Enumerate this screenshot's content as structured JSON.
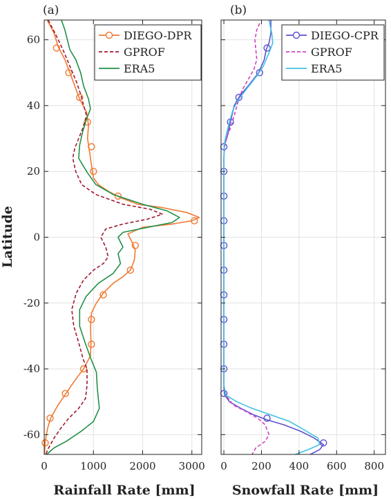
{
  "chart_data": [
    {
      "type": "line",
      "panel_label": "(a)",
      "xlabel": "Rainfall Rate [mm]",
      "ylabel": "Latitude",
      "xlim": [
        0,
        3200
      ],
      "ylim": [
        -66,
        66
      ],
      "xticks": [
        0,
        1000,
        2000,
        3000
      ],
      "xtick_labels": [
        "0",
        "1000",
        "2000",
        "3000"
      ],
      "yticks": [
        -60,
        -40,
        -20,
        0,
        20,
        40,
        60
      ],
      "ytick_labels": [
        "-60",
        "-40",
        "-20",
        "0",
        "20",
        "40",
        "60"
      ],
      "grid": true,
      "legend_position": "top-right",
      "series": [
        {
          "name": "DIEGO-DPR",
          "color": "#f07830",
          "style": "solid-circle",
          "points": [
            [
              60,
              66
            ],
            [
              200,
              62
            ],
            [
              280,
              58
            ],
            [
              420,
              54
            ],
            [
              520,
              50
            ],
            [
              620,
              46
            ],
            [
              720,
              42
            ],
            [
              860,
              38
            ],
            [
              900,
              34
            ],
            [
              880,
              30
            ],
            [
              920,
              26
            ],
            [
              960,
              22
            ],
            [
              1000,
              18
            ],
            [
              1100,
              16
            ],
            [
              1300,
              14
            ],
            [
              1550,
              12
            ],
            [
              1900,
              10
            ],
            [
              2400,
              9
            ],
            [
              2900,
              7.5
            ],
            [
              3150,
              6
            ],
            [
              3000,
              5
            ],
            [
              2600,
              4
            ],
            [
              2000,
              3
            ],
            [
              1700,
              1
            ],
            [
              1800,
              -2
            ],
            [
              1850,
              -4
            ],
            [
              1830,
              -7
            ],
            [
              1750,
              -10
            ],
            [
              1600,
              -12
            ],
            [
              1400,
              -14
            ],
            [
              1200,
              -17
            ],
            [
              1060,
              -20
            ],
            [
              960,
              -23
            ],
            [
              940,
              -27
            ],
            [
              950,
              -32
            ],
            [
              940,
              -36
            ],
            [
              800,
              -40
            ],
            [
              600,
              -44
            ],
            [
              420,
              -48
            ],
            [
              280,
              -51
            ],
            [
              130,
              -55
            ],
            [
              70,
              -58
            ],
            [
              20,
              -62
            ],
            [
              5,
              -66
            ]
          ],
          "markers": [
            [
              250,
              57.5
            ],
            [
              500,
              50
            ],
            [
              720,
              42.5
            ],
            [
              880,
              35
            ],
            [
              960,
              27.5
            ],
            [
              1000,
              20
            ],
            [
              1500,
              12.5
            ],
            [
              3050,
              5
            ],
            [
              1850,
              -2.5
            ],
            [
              1750,
              -10
            ],
            [
              1200,
              -17.5
            ],
            [
              960,
              -25
            ],
            [
              960,
              -32.5
            ],
            [
              800,
              -40
            ],
            [
              430,
              -47.5
            ],
            [
              120,
              -55
            ],
            [
              20,
              -62.5
            ]
          ]
        },
        {
          "name": "GPROF",
          "color": "#a01830",
          "style": "dashed",
          "points": [
            [
              80,
              66
            ],
            [
              220,
              62
            ],
            [
              380,
              57
            ],
            [
              520,
              52
            ],
            [
              660,
              47
            ],
            [
              750,
              43
            ],
            [
              820,
              39
            ],
            [
              860,
              37
            ],
            [
              780,
              33
            ],
            [
              700,
              30
            ],
            [
              620,
              27
            ],
            [
              580,
              24
            ],
            [
              640,
              20
            ],
            [
              760,
              16
            ],
            [
              1050,
              13
            ],
            [
              1600,
              10
            ],
            [
              2150,
              8.5
            ],
            [
              2400,
              7
            ],
            [
              2100,
              5.5
            ],
            [
              1600,
              4
            ],
            [
              1250,
              2.5
            ],
            [
              1150,
              0
            ],
            [
              1250,
              -3
            ],
            [
              1300,
              -6
            ],
            [
              1200,
              -8
            ],
            [
              1000,
              -10
            ],
            [
              800,
              -13
            ],
            [
              650,
              -17
            ],
            [
              560,
              -22
            ],
            [
              600,
              -27
            ],
            [
              700,
              -32
            ],
            [
              790,
              -37
            ],
            [
              870,
              -40
            ],
            [
              870,
              -45
            ],
            [
              840,
              -49
            ],
            [
              700,
              -52
            ],
            [
              500,
              -55
            ],
            [
              340,
              -58
            ],
            [
              200,
              -61
            ],
            [
              90,
              -64
            ],
            [
              30,
              -66
            ]
          ]
        },
        {
          "name": "ERA5",
          "color": "#209048",
          "style": "solid",
          "points": [
            [
              350,
              66
            ],
            [
              420,
              63
            ],
            [
              470,
              60
            ],
            [
              520,
              57
            ],
            [
              640,
              54
            ],
            [
              740,
              50
            ],
            [
              800,
              46
            ],
            [
              900,
              42
            ],
            [
              940,
              39
            ],
            [
              860,
              36
            ],
            [
              780,
              32
            ],
            [
              720,
              28
            ],
            [
              700,
              24
            ],
            [
              860,
              20
            ],
            [
              1050,
              16
            ],
            [
              1400,
              13
            ],
            [
              2000,
              10
            ],
            [
              2500,
              8
            ],
            [
              2750,
              6
            ],
            [
              2600,
              4.5
            ],
            [
              2100,
              3
            ],
            [
              1600,
              1.5
            ],
            [
              1500,
              0
            ],
            [
              1600,
              -3
            ],
            [
              1500,
              -5
            ],
            [
              1550,
              -8
            ],
            [
              1400,
              -11
            ],
            [
              1100,
              -14
            ],
            [
              850,
              -18
            ],
            [
              720,
              -22
            ],
            [
              720,
              -27
            ],
            [
              830,
              -32
            ],
            [
              950,
              -37
            ],
            [
              1060,
              -41
            ],
            [
              1080,
              -46
            ],
            [
              1120,
              -52
            ],
            [
              1000,
              -56
            ],
            [
              750,
              -59
            ],
            [
              450,
              -62
            ],
            [
              200,
              -64
            ],
            [
              50,
              -66
            ]
          ]
        }
      ]
    },
    {
      "type": "line",
      "panel_label": "(b)",
      "xlabel": "Snowfall Rate [mm]",
      "ylabel": "",
      "xlim": [
        -15,
        860
      ],
      "ylim": [
        -66,
        66
      ],
      "xticks": [
        0,
        200,
        400,
        600,
        800
      ],
      "xtick_labels": [
        "0",
        "200",
        "400",
        "600",
        "800"
      ],
      "yticks": [
        -60,
        -40,
        -20,
        0,
        20,
        40,
        60
      ],
      "ytick_labels": [],
      "grid": true,
      "legend_position": "top-right",
      "series": [
        {
          "name": "DIEGO-CPR",
          "color": "#5a50d0",
          "style": "solid-circle",
          "points": [
            [
              250,
              66
            ],
            [
              250,
              62
            ],
            [
              240,
              59
            ],
            [
              225,
              57
            ],
            [
              215,
              54
            ],
            [
              185,
              50
            ],
            [
              130,
              46
            ],
            [
              85,
              43
            ],
            [
              55,
              40
            ],
            [
              35,
              35
            ],
            [
              15,
              30
            ],
            [
              2,
              28
            ],
            [
              0,
              24
            ],
            [
              0,
              20
            ],
            [
              0,
              0
            ],
            [
              0,
              -20
            ],
            [
              0,
              -40
            ],
            [
              0,
              -46
            ],
            [
              5,
              -48
            ],
            [
              30,
              -50
            ],
            [
              90,
              -52
            ],
            [
              160,
              -54
            ],
            [
              230,
              -55.5
            ],
            [
              320,
              -57
            ],
            [
              410,
              -59
            ],
            [
              480,
              -61
            ],
            [
              530,
              -63
            ],
            [
              510,
              -64.5
            ],
            [
              460,
              -66
            ]
          ],
          "markers": [
            [
              230,
              57.5
            ],
            [
              190,
              50
            ],
            [
              80,
              42.5
            ],
            [
              35,
              35
            ],
            [
              0,
              27.5
            ],
            [
              0,
              20
            ],
            [
              0,
              12.5
            ],
            [
              0,
              5
            ],
            [
              0,
              -2.5
            ],
            [
              0,
              -10
            ],
            [
              0,
              -17.5
            ],
            [
              0,
              -25
            ],
            [
              0,
              -32.5
            ],
            [
              0,
              -40
            ],
            [
              0,
              -47.5
            ],
            [
              230,
              -55
            ],
            [
              530,
              -62.5
            ]
          ]
        },
        {
          "name": "GPROF",
          "color": "#d040c0",
          "style": "dashed",
          "points": [
            [
              190,
              65
            ],
            [
              175,
              63
            ],
            [
              165,
              60
            ],
            [
              170,
              57
            ],
            [
              175,
              54
            ],
            [
              160,
              51
            ],
            [
              130,
              48
            ],
            [
              100,
              45
            ],
            [
              80,
              42
            ],
            [
              60,
              38
            ],
            [
              40,
              34
            ],
            [
              20,
              31
            ],
            [
              5,
              28
            ],
            [
              0,
              24
            ],
            [
              0,
              0
            ],
            [
              0,
              -20
            ],
            [
              0,
              -40
            ],
            [
              0,
              -45
            ],
            [
              10,
              -48
            ],
            [
              50,
              -51
            ],
            [
              120,
              -53
            ],
            [
              180,
              -55
            ],
            [
              220,
              -57
            ],
            [
              240,
              -60
            ],
            [
              220,
              -62
            ],
            [
              170,
              -64
            ],
            [
              150,
              -66
            ]
          ]
        },
        {
          "name": "ERA5",
          "color": "#40c0e0",
          "style": "solid",
          "points": [
            [
              240,
              66
            ],
            [
              255,
              62
            ],
            [
              260,
              59
            ],
            [
              240,
              56
            ],
            [
              210,
              52
            ],
            [
              175,
              49
            ],
            [
              120,
              45
            ],
            [
              80,
              42
            ],
            [
              50,
              39
            ],
            [
              30,
              35
            ],
            [
              12,
              31
            ],
            [
              2,
              28
            ],
            [
              0,
              24
            ],
            [
              0,
              0
            ],
            [
              0,
              -20
            ],
            [
              0,
              -40
            ],
            [
              0,
              -45
            ],
            [
              10,
              -48
            ],
            [
              70,
              -50
            ],
            [
              150,
              -52
            ],
            [
              250,
              -54
            ],
            [
              350,
              -56
            ],
            [
              440,
              -59
            ],
            [
              500,
              -61
            ],
            [
              510,
              -63
            ],
            [
              450,
              -64.5
            ],
            [
              380,
              -66
            ]
          ]
        }
      ]
    }
  ]
}
